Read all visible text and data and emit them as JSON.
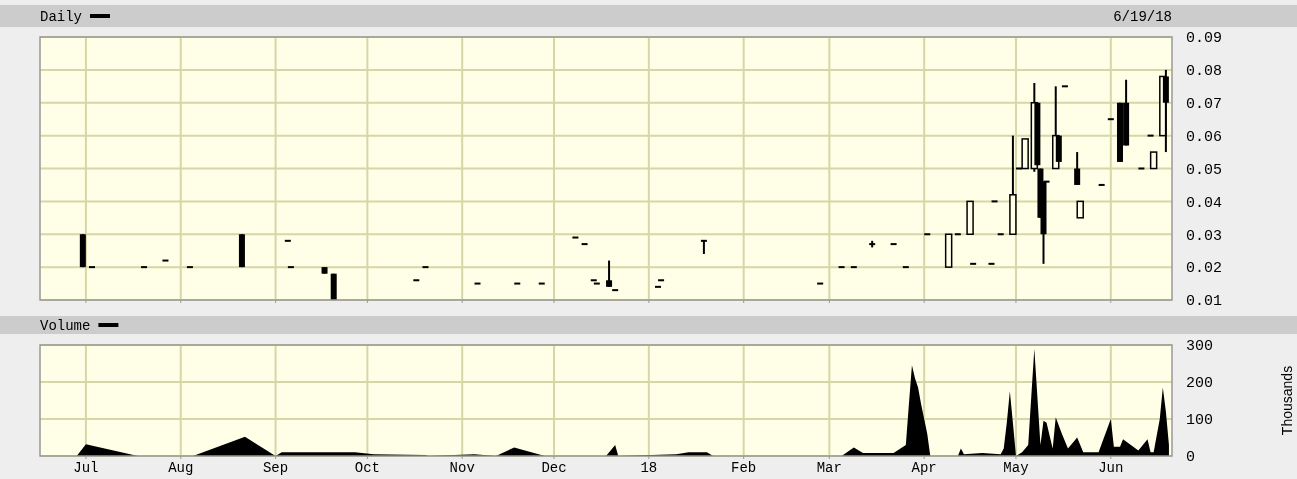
{
  "chart_data": [
    {
      "type": "candlestick",
      "subtitle": "6/19/18",
      "legend": "top left",
      "grid": true,
      "tick_labels": "y",
      "xlim": [
        "2017-06-16",
        "2018-06-21"
      ],
      "xticks": [
        {
          "value": "2017-07-01",
          "label": null
        },
        {
          "value": "2017-08-01",
          "label": null
        },
        {
          "value": "2017-09-01",
          "label": null
        },
        {
          "value": "2017-10-01",
          "label": null
        },
        {
          "value": "2017-11-01",
          "label": null
        },
        {
          "value": "2017-12-01",
          "label": null
        },
        {
          "value": "2018-01-01",
          "label": null
        },
        {
          "value": "2018-02-01",
          "label": null
        },
        {
          "value": "2018-03-01",
          "label": null
        },
        {
          "value": "2018-04-01",
          "label": null
        },
        {
          "value": "2018-05-01",
          "label": null
        },
        {
          "value": "2018-06-01",
          "label": null
        }
      ],
      "ylim": [
        0.01,
        0.09
      ],
      "yticks": [
        0.01,
        0.02,
        0.03,
        0.04,
        0.05,
        0.06,
        0.07,
        0.08,
        0.09
      ],
      "series": [
        {
          "name": "Daily",
          "color": "#000000",
          "x": [
            "2017-06-30",
            "2017-07-03",
            "2017-07-20",
            "2017-07-27",
            "2017-08-04",
            "2017-08-21",
            "2017-09-05",
            "2017-09-06",
            "2017-09-17",
            "2017-09-20",
            "2017-10-17",
            "2017-10-20",
            "2017-11-06",
            "2017-11-19",
            "2017-11-27",
            "2017-12-08",
            "2017-12-11",
            "2017-12-14",
            "2017-12-15",
            "2017-12-19",
            "2017-12-21",
            "2018-01-04",
            "2018-01-05",
            "2018-01-19",
            "2018-02-26",
            "2018-03-05",
            "2018-03-09",
            "2018-03-15",
            "2018-03-22",
            "2018-03-26",
            "2018-04-02",
            "2018-04-09",
            "2018-04-12",
            "2018-04-16",
            "2018-04-17",
            "2018-04-23",
            "2018-04-24",
            "2018-04-26",
            "2018-04-30",
            "2018-05-02",
            "2018-05-04",
            "2018-05-07",
            "2018-05-08",
            "2018-05-09",
            "2018-05-10",
            "2018-05-11",
            "2018-05-14",
            "2018-05-15",
            "2018-05-17",
            "2018-05-21",
            "2018-05-22",
            "2018-05-29",
            "2018-06-01",
            "2018-06-04",
            "2018-06-06",
            "2018-06-11",
            "2018-06-14",
            "2018-06-15",
            "2018-06-18",
            "2018-06-19"
          ],
          "ohlc": [
            [
              0.03,
              0.03,
              0.02,
              0.02
            ],
            [
              0.02,
              0.02,
              0.02,
              0.02
            ],
            [
              0.02,
              0.02,
              0.02,
              0.02
            ],
            [
              0.022,
              0.022,
              0.022,
              0.022
            ],
            [
              0.02,
              0.02,
              0.02,
              0.02
            ],
            [
              0.03,
              0.03,
              0.02,
              0.02
            ],
            [
              0.028,
              0.028,
              0.028,
              0.028
            ],
            [
              0.02,
              0.02,
              0.02,
              0.02
            ],
            [
              0.02,
              0.02,
              0.018,
              0.018
            ],
            [
              0.018,
              0.018,
              0.01,
              0.01
            ],
            [
              0.016,
              0.016,
              0.016,
              0.016
            ],
            [
              0.02,
              0.02,
              0.02,
              0.02
            ],
            [
              0.015,
              0.015,
              0.015,
              0.015
            ],
            [
              0.015,
              0.015,
              0.015,
              0.015
            ],
            [
              0.015,
              0.015,
              0.015,
              0.015
            ],
            [
              0.029,
              0.029,
              0.029,
              0.029
            ],
            [
              0.027,
              0.027,
              0.027,
              0.027
            ],
            [
              0.016,
              0.016,
              0.016,
              0.016
            ],
            [
              0.015,
              0.015,
              0.015,
              0.015
            ],
            [
              0.016,
              0.022,
              0.014,
              0.014
            ],
            [
              0.013,
              0.013,
              0.013,
              0.013
            ],
            [
              0.014,
              0.014,
              0.014,
              0.014
            ],
            [
              0.016,
              0.016,
              0.016,
              0.016
            ],
            [
              0.028,
              0.028,
              0.024,
              0.028
            ],
            [
              0.015,
              0.015,
              0.015,
              0.015
            ],
            [
              0.02,
              0.02,
              0.02,
              0.02
            ],
            [
              0.02,
              0.02,
              0.02,
              0.02
            ],
            [
              0.027,
              0.028,
              0.026,
              0.027
            ],
            [
              0.027,
              0.027,
              0.027,
              0.027
            ],
            [
              0.02,
              0.02,
              0.02,
              0.02
            ],
            [
              0.03,
              0.03,
              0.03,
              0.03
            ],
            [
              0.02,
              0.03,
              0.02,
              0.03
            ],
            [
              0.03,
              0.03,
              0.03,
              0.03
            ],
            [
              0.03,
              0.04,
              0.03,
              0.04
            ],
            [
              0.021,
              0.021,
              0.021,
              0.021
            ],
            [
              0.021,
              0.021,
              0.021,
              0.021
            ],
            [
              0.04,
              0.04,
              0.04,
              0.04
            ],
            [
              0.03,
              0.03,
              0.03,
              0.03
            ],
            [
              0.03,
              0.06,
              0.03,
              0.042
            ],
            [
              0.05,
              0.05,
              0.05,
              0.05
            ],
            [
              0.05,
              0.059,
              0.05,
              0.059
            ],
            [
              0.05,
              0.076,
              0.049,
              0.07
            ],
            [
              0.07,
              0.07,
              0.051,
              0.051
            ],
            [
              0.05,
              0.05,
              0.035,
              0.035
            ],
            [
              0.046,
              0.046,
              0.021,
              0.03
            ],
            [
              0.046,
              0.046,
              0.046,
              0.046
            ],
            [
              0.05,
              0.075,
              0.05,
              0.06
            ],
            [
              0.06,
              0.06,
              0.052,
              0.052
            ],
            [
              0.075,
              0.075,
              0.075,
              0.075
            ],
            [
              0.05,
              0.055,
              0.045,
              0.045
            ],
            [
              0.035,
              0.04,
              0.035,
              0.04
            ],
            [
              0.045,
              0.045,
              0.045,
              0.045
            ],
            [
              0.065,
              0.065,
              0.065,
              0.065
            ],
            [
              0.07,
              0.07,
              0.052,
              0.052
            ],
            [
              0.07,
              0.077,
              0.057,
              0.057
            ],
            [
              0.05,
              0.05,
              0.05,
              0.05
            ],
            [
              0.06,
              0.06,
              0.06,
              0.06
            ],
            [
              0.05,
              0.055,
              0.05,
              0.055
            ],
            [
              0.06,
              0.078,
              0.06,
              0.078
            ],
            [
              0.078,
              0.08,
              0.055,
              0.07
            ]
          ]
        }
      ]
    },
    {
      "type": "area",
      "ylabel": "Thousands",
      "legend": "top left",
      "grid": true,
      "xlim": [
        "2017-06-16",
        "2018-06-21"
      ],
      "xticks": [
        {
          "value": "2017-07-01",
          "label": "Jul"
        },
        {
          "value": "2017-08-01",
          "label": "Aug"
        },
        {
          "value": "2017-09-01",
          "label": "Sep"
        },
        {
          "value": "2017-10-01",
          "label": "Oct"
        },
        {
          "value": "2017-11-01",
          "label": "Nov"
        },
        {
          "value": "2017-12-01",
          "label": "Dec"
        },
        {
          "value": "2018-01-01",
          "label": "18"
        },
        {
          "value": "2018-02-01",
          "label": "Feb"
        },
        {
          "value": "2018-03-01",
          "label": "Mar"
        },
        {
          "value": "2018-04-01",
          "label": "Apr"
        },
        {
          "value": "2018-05-01",
          "label": "May"
        },
        {
          "value": "2018-06-01",
          "label": "Jun"
        }
      ],
      "ylim": [
        0,
        300
      ],
      "yticks": [
        0,
        100,
        200,
        300
      ],
      "series": [
        {
          "name": "Volume",
          "color": "#000000",
          "x": [
            "2017-06-28",
            "2017-07-01",
            "2017-07-18",
            "2017-08-05",
            "2017-08-22",
            "2017-09-01",
            "2017-09-03",
            "2017-09-27",
            "2017-10-03",
            "2017-10-20",
            "2017-10-21",
            "2017-11-05",
            "2017-11-12",
            "2017-11-18",
            "2017-11-28",
            "2017-12-18",
            "2017-12-21",
            "2017-12-22",
            "2018-01-10",
            "2018-01-14",
            "2018-01-20",
            "2018-01-22",
            "2018-03-05",
            "2018-03-09",
            "2018-03-12",
            "2018-03-22",
            "2018-03-26",
            "2018-03-27",
            "2018-03-28",
            "2018-03-29",
            "2018-03-30",
            "2018-03-31",
            "2018-04-01",
            "2018-04-02",
            "2018-04-03",
            "2018-04-12",
            "2018-04-13",
            "2018-04-14",
            "2018-04-20",
            "2018-04-26",
            "2018-04-27",
            "2018-04-28",
            "2018-04-29",
            "2018-04-30",
            "2018-05-01",
            "2018-05-03",
            "2018-05-05",
            "2018-05-06",
            "2018-05-07",
            "2018-05-08",
            "2018-05-09",
            "2018-05-10",
            "2018-05-11",
            "2018-05-13",
            "2018-05-14",
            "2018-05-16",
            "2018-05-18",
            "2018-05-21",
            "2018-05-23",
            "2018-05-28",
            "2018-06-01",
            "2018-06-02",
            "2018-06-04",
            "2018-06-05",
            "2018-06-10",
            "2018-06-13",
            "2018-06-14",
            "2018-06-15",
            "2018-06-17",
            "2018-06-18",
            "2018-06-19",
            "2018-06-20"
          ],
          "values": [
            0,
            32,
            0,
            0,
            52,
            0,
            10,
            10,
            5,
            3,
            0,
            5,
            0,
            23,
            0,
            0,
            30,
            0,
            5,
            10,
            10,
            0,
            0,
            23,
            8,
            8,
            30,
            140,
            245,
            210,
            185,
            140,
            100,
            60,
            0,
            0,
            20,
            5,
            8,
            5,
            20,
            90,
            175,
            90,
            0,
            10,
            30,
            160,
            290,
            160,
            30,
            95,
            90,
            20,
            105,
            60,
            20,
            50,
            10,
            10,
            100,
            25,
            25,
            45,
            15,
            45,
            10,
            10,
            100,
            185,
            120,
            30
          ]
        }
      ]
    }
  ]
}
